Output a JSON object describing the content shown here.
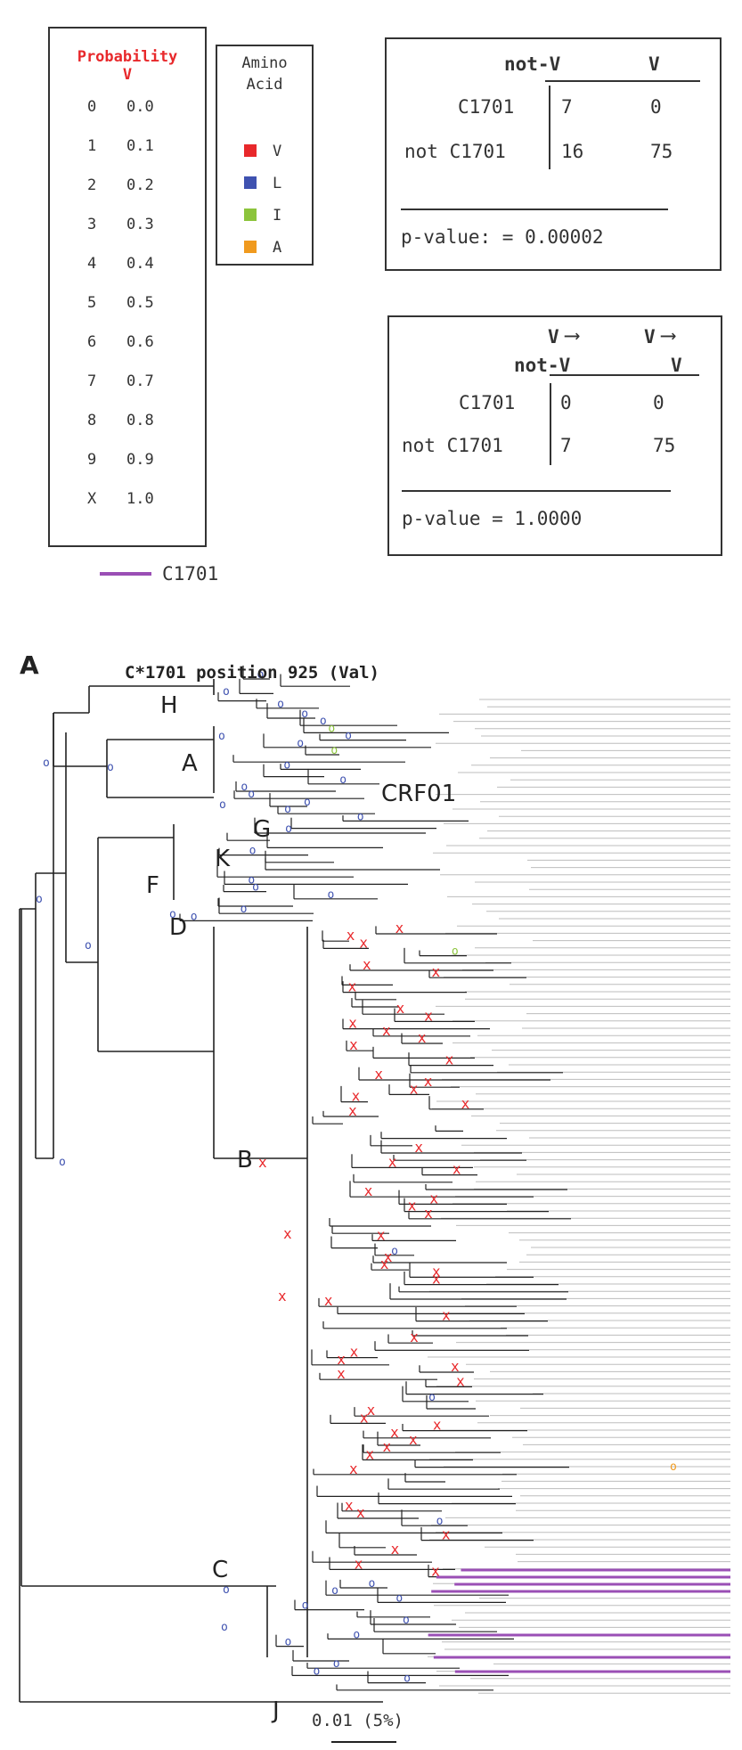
{
  "probability_legend": {
    "title_line1": "Probability",
    "title_line2": "V",
    "rows": [
      {
        "code": "0",
        "value": "0.0"
      },
      {
        "code": "1",
        "value": "0.1"
      },
      {
        "code": "2",
        "value": "0.2"
      },
      {
        "code": "3",
        "value": "0.3"
      },
      {
        "code": "4",
        "value": "0.4"
      },
      {
        "code": "5",
        "value": "0.5"
      },
      {
        "code": "6",
        "value": "0.6"
      },
      {
        "code": "7",
        "value": "0.7"
      },
      {
        "code": "8",
        "value": "0.8"
      },
      {
        "code": "9",
        "value": "0.9"
      },
      {
        "code": "X",
        "value": "1.0"
      }
    ]
  },
  "amino_acid_legend": {
    "title_line1": "Amino",
    "title_line2": "Acid",
    "items": [
      {
        "label": "V",
        "color": "#e8282b"
      },
      {
        "label": "L",
        "color": "#3f52b0"
      },
      {
        "label": "I",
        "color": "#8cc43c"
      },
      {
        "label": "A",
        "color": "#f09a1e"
      }
    ]
  },
  "table1": {
    "col1": "not-V",
    "col2": "V",
    "row1_label": "C1701",
    "row1_values": [
      "7",
      "0"
    ],
    "row2_label": "not C1701",
    "row2_values": [
      "16",
      "75"
    ],
    "pvalue": "p-value: = 0.00002"
  },
  "table2": {
    "col1_top": "V",
    "col1_bottom": "not-V",
    "col2_top": "V",
    "col2_bottom": "V",
    "row1_label": "C1701",
    "row1_values": [
      "0",
      "0"
    ],
    "row2_label": "not C1701",
    "row2_values": [
      "7",
      "75"
    ],
    "pvalue": "p-value = 1.0000"
  },
  "c1701_legend": {
    "label": "C1701",
    "color": "#9a4fb5"
  },
  "tree": {
    "panel_label": "A",
    "title": "C*1701 position 925 (Val)",
    "clade_labels": [
      "H",
      "A",
      "CRF01",
      "G",
      "K",
      "F",
      "D",
      "B",
      "C",
      "J"
    ],
    "scale_label": "0.01 (5%)"
  }
}
